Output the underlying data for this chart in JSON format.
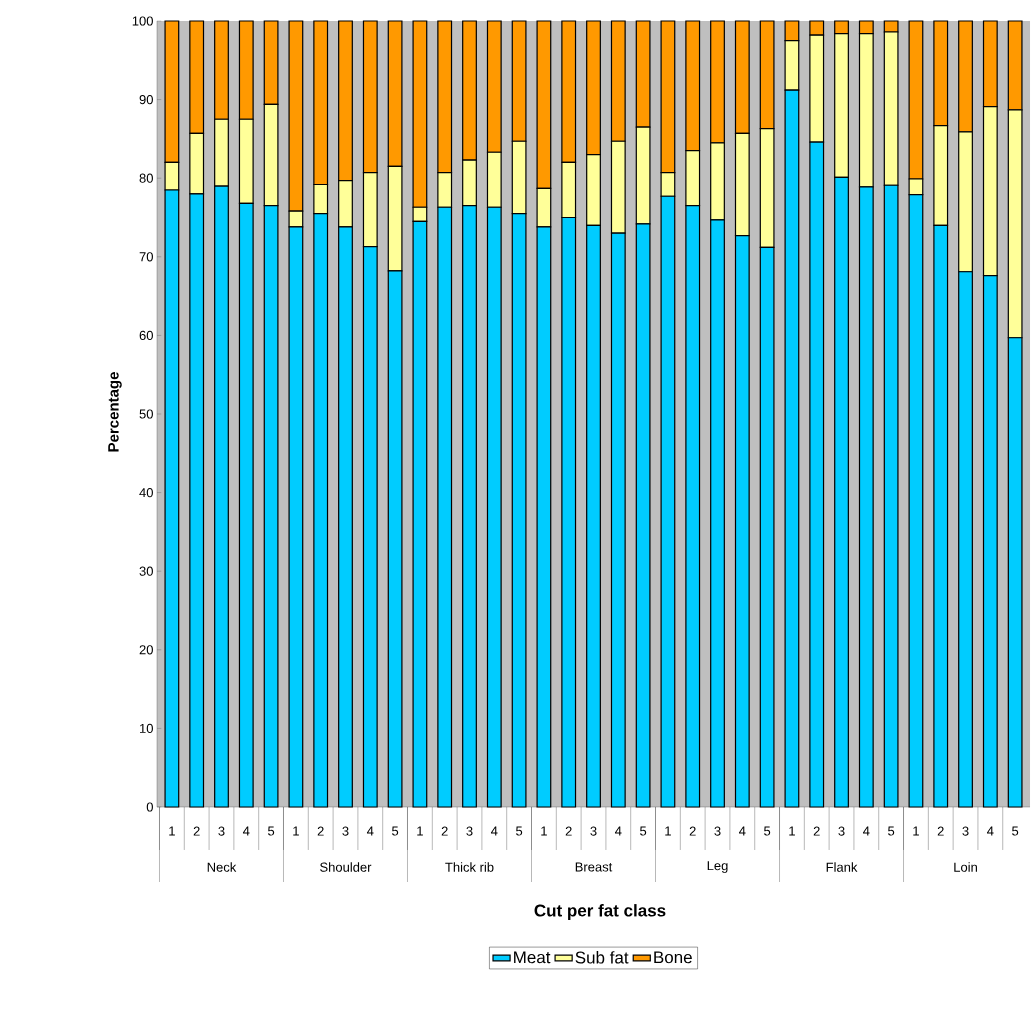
{
  "chart_data": {
    "type": "bar",
    "stacked": true,
    "xlabel": "Cut per fat class",
    "ylabel": "Percentage",
    "categories": [
      "1",
      "2",
      "3",
      "4",
      "5",
      "1",
      "2",
      "3",
      "4",
      "5",
      "1",
      "2",
      "3",
      "4",
      "5",
      "1",
      "2",
      "3",
      "4",
      "5",
      "1",
      "2",
      "3",
      "4",
      "5",
      "1",
      "2",
      "3",
      "4",
      "5",
      "1",
      "2",
      "3",
      "4",
      "5"
    ],
    "annotations": [
      "Neck",
      "Shoulder",
      "Thick rib",
      "Breast",
      "Leg",
      "Flank",
      "Loin"
    ],
    "series": [
      {
        "name": "Meat",
        "color": "#00ccff",
        "values": [
          78.5,
          78,
          79,
          76.8,
          76.5,
          73.8,
          75.5,
          73.8,
          71.3,
          68.2,
          74.5,
          76.3,
          76.5,
          76.3,
          75.5,
          73.8,
          75,
          74,
          73,
          74.2,
          77.7,
          76.5,
          74.7,
          72.7,
          71.2,
          91.2,
          84.6,
          80.1,
          78.9,
          79.1,
          77.9,
          74,
          68.1,
          67.6,
          59.7
        ]
      },
      {
        "name": "Sub fat",
        "color": "#ffff99",
        "values": [
          3.5,
          7.7,
          8.5,
          10.7,
          12.9,
          2,
          3.7,
          5.9,
          9.4,
          13.3,
          1.8,
          4.4,
          5.8,
          7,
          9.2,
          4.9,
          7,
          9,
          11.7,
          12.3,
          3,
          7,
          9.8,
          13,
          15.1,
          6.3,
          13.6,
          18.3,
          19.5,
          19.5,
          2,
          12.7,
          17.8,
          21.5,
          29
        ]
      },
      {
        "name": "Bone",
        "color": "#ff9900",
        "values": [
          18,
          14.3,
          12.5,
          12.5,
          10.6,
          24.2,
          20.8,
          20.3,
          19.3,
          18.5,
          23.7,
          19.3,
          17.7,
          16.7,
          15.3,
          21.3,
          18,
          17,
          15.3,
          13.5,
          19.3,
          16.5,
          15.5,
          14.3,
          13.7,
          2.5,
          1.8,
          1.6,
          1.6,
          1.4,
          20.1,
          13.3,
          14.1,
          10.9,
          11.3
        ]
      }
    ],
    "ylim": [
      0,
      100
    ],
    "yticks": [
      0,
      10,
      20,
      30,
      40,
      50,
      60,
      70,
      80,
      90,
      100
    ],
    "legend": "bottom"
  }
}
